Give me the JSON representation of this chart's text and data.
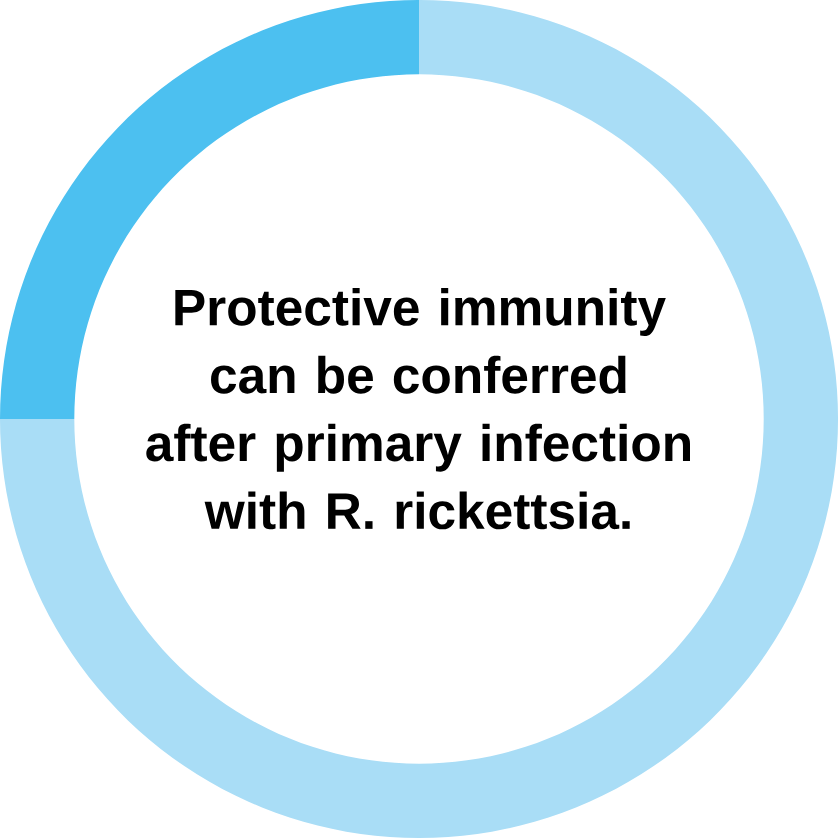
{
  "chart_data": {
    "type": "donut",
    "title": "Protective immunity can be conferred after primary infection with R. rickettsia.",
    "categories": [
      null,
      null
    ],
    "values": [
      25,
      75
    ],
    "colors": [
      "#4cc0f0",
      "#a9ddf6"
    ]
  }
}
